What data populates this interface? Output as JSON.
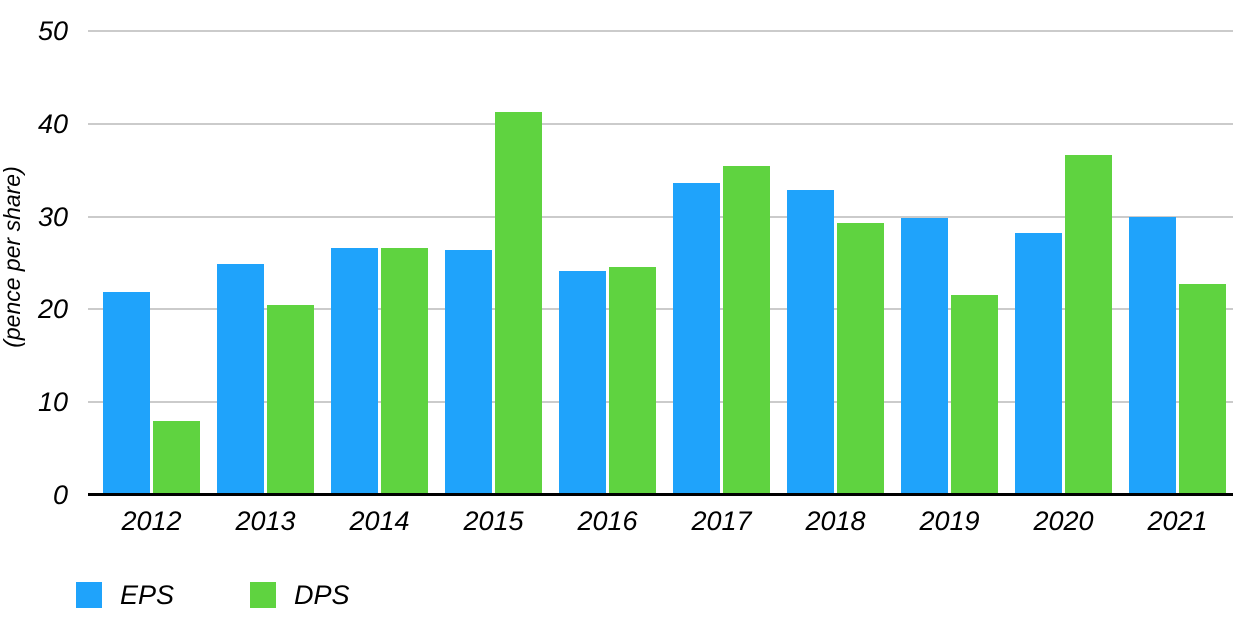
{
  "chart_data": {
    "type": "bar",
    "title": "",
    "xlabel": "",
    "ylabel": "(pence per share)",
    "ylim": [
      0,
      50
    ],
    "yticks": [
      0,
      10,
      20,
      30,
      40,
      50
    ],
    "grid": true,
    "legend_position": "bottom-left",
    "categories": [
      "2012",
      "2013",
      "2014",
      "2015",
      "2016",
      "2017",
      "2018",
      "2019",
      "2020",
      "2021"
    ],
    "series": [
      {
        "name": "EPS",
        "color": "#1FA3FB",
        "values": [
          21.9,
          24.9,
          26.6,
          26.4,
          24.1,
          33.6,
          32.9,
          29.9,
          28.2,
          30.0
        ]
      },
      {
        "name": "DPS",
        "color": "#5FD340",
        "values": [
          8.0,
          20.5,
          26.6,
          41.3,
          24.6,
          35.4,
          29.3,
          21.6,
          36.6,
          22.7
        ]
      }
    ],
    "colors": {
      "gridline": "#cbcbcb",
      "axis": "#000000",
      "text": "#000000",
      "background": "#ffffff"
    }
  }
}
